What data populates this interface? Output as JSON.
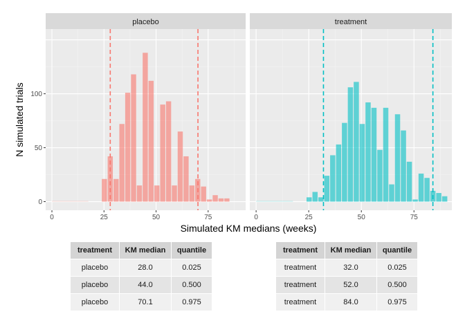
{
  "chart_data": {
    "type": "bar",
    "xlabel": "Simulated KM medians (weeks)",
    "ylabel": "N simulated trials",
    "xlim": [
      -3,
      93
    ],
    "ylim": [
      -8,
      160
    ],
    "x_ticks": [
      0,
      25,
      50,
      75
    ],
    "y_ticks": [
      0,
      50,
      100
    ],
    "grid": true,
    "bin_width": 2.8,
    "panels": [
      {
        "name": "placebo",
        "color": "#F8766D",
        "bins": [
          {
            "x": 25.2,
            "n": 21
          },
          {
            "x": 28.0,
            "n": 42
          },
          {
            "x": 30.8,
            "n": 21
          },
          {
            "x": 33.6,
            "n": 72
          },
          {
            "x": 36.4,
            "n": 101
          },
          {
            "x": 39.2,
            "n": 118
          },
          {
            "x": 42.0,
            "n": 15
          },
          {
            "x": 44.8,
            "n": 138
          },
          {
            "x": 47.6,
            "n": 112
          },
          {
            "x": 50.4,
            "n": 15
          },
          {
            "x": 53.2,
            "n": 90
          },
          {
            "x": 56.0,
            "n": 93
          },
          {
            "x": 58.8,
            "n": 15
          },
          {
            "x": 61.6,
            "n": 65
          },
          {
            "x": 64.4,
            "n": 42
          },
          {
            "x": 67.2,
            "n": 15
          },
          {
            "x": 70.0,
            "n": 21
          },
          {
            "x": 72.8,
            "n": 14
          },
          {
            "x": 75.6,
            "n": 2
          },
          {
            "x": 78.4,
            "n": 6
          },
          {
            "x": 81.2,
            "n": 3
          },
          {
            "x": 84.0,
            "n": 3
          }
        ],
        "quantiles": [
          28.0,
          70.1
        ]
      },
      {
        "name": "treatment",
        "color": "#00BFC4",
        "bins": [
          {
            "x": 25.2,
            "n": 4
          },
          {
            "x": 28.0,
            "n": 9
          },
          {
            "x": 30.8,
            "n": 4
          },
          {
            "x": 33.6,
            "n": 24
          },
          {
            "x": 36.4,
            "n": 43
          },
          {
            "x": 39.2,
            "n": 53
          },
          {
            "x": 42.0,
            "n": 73
          },
          {
            "x": 44.8,
            "n": 106
          },
          {
            "x": 47.6,
            "n": 111
          },
          {
            "x": 50.4,
            "n": 72
          },
          {
            "x": 53.2,
            "n": 92
          },
          {
            "x": 56.0,
            "n": 87
          },
          {
            "x": 58.8,
            "n": 48
          },
          {
            "x": 61.6,
            "n": 87
          },
          {
            "x": 64.4,
            "n": 16
          },
          {
            "x": 67.2,
            "n": 81
          },
          {
            "x": 70.0,
            "n": 66
          },
          {
            "x": 72.8,
            "n": 37
          },
          {
            "x": 75.6,
            "n": 2
          },
          {
            "x": 78.4,
            "n": 26
          },
          {
            "x": 81.2,
            "n": 22
          },
          {
            "x": 84.0,
            "n": 10
          },
          {
            "x": 86.8,
            "n": 8
          },
          {
            "x": 89.6,
            "n": 5
          }
        ],
        "quantiles": [
          32.0,
          84.0
        ]
      }
    ],
    "tables": [
      {
        "headers": [
          "treatment",
          "KM median",
          "quantile"
        ],
        "rows": [
          [
            "placebo",
            "28.0",
            "0.025"
          ],
          [
            "placebo",
            "44.0",
            "0.500"
          ],
          [
            "placebo",
            "70.1",
            "0.975"
          ]
        ]
      },
      {
        "headers": [
          "treatment",
          "KM median",
          "quantile"
        ],
        "rows": [
          [
            "treatment",
            "32.0",
            "0.025"
          ],
          [
            "treatment",
            "52.0",
            "0.500"
          ],
          [
            "treatment",
            "84.0",
            "0.975"
          ]
        ]
      }
    ]
  }
}
